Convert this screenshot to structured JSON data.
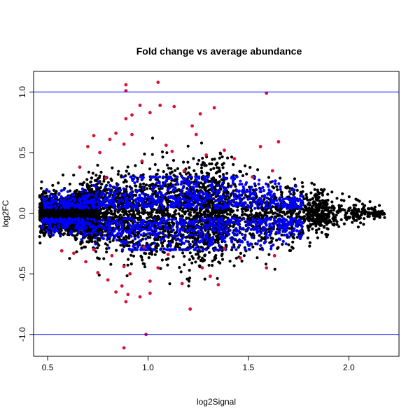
{
  "chart_data": {
    "type": "scatter",
    "title": "Fold change vs average abundance",
    "xlabel": "log2Signal",
    "ylabel": "log2FC",
    "xlim": [
      0.43,
      2.25
    ],
    "ylim": [
      -1.18,
      1.17
    ],
    "x_ticks": [
      0.5,
      1.0,
      1.5,
      2.0
    ],
    "x_tick_labels": [
      "0.5",
      "1.0",
      "1.5",
      "2.0"
    ],
    "y_ticks": [
      -1.0,
      -0.5,
      0.0,
      0.5,
      1.0
    ],
    "y_tick_labels": [
      "-1.0",
      "-0.5",
      "0.0",
      "0.5",
      "1.0"
    ],
    "hlines": [
      1.0,
      -1.0
    ],
    "grid": false,
    "colors": {
      "background_points": "#000000",
      "moderate_points": "#0000ff",
      "significant_points": "#dd1133",
      "hline": "#0000ff"
    },
    "series": [
      {
        "color": "#dd1133",
        "points": [
          [
            0.89,
            1.06
          ],
          [
            0.89,
            1.01
          ],
          [
            1.05,
            1.08
          ],
          [
            1.59,
            0.99
          ],
          [
            0.92,
            0.81
          ],
          [
            0.89,
            0.78
          ],
          [
            0.96,
            0.89
          ],
          [
            1.01,
            0.83
          ],
          [
            1.06,
            0.89
          ],
          [
            1.13,
            0.88
          ],
          [
            1.26,
            0.82
          ],
          [
            1.33,
            0.87
          ],
          [
            1.22,
            0.72
          ],
          [
            1.24,
            0.65
          ],
          [
            0.84,
            0.66
          ],
          [
            0.92,
            0.65
          ],
          [
            0.73,
            0.64
          ],
          [
            0.81,
            0.61
          ],
          [
            1.65,
            0.59
          ],
          [
            1.56,
            0.55
          ],
          [
            0.88,
            0.57
          ],
          [
            1.38,
            0.52
          ],
          [
            0.7,
            0.55
          ],
          [
            0.76,
            0.5
          ],
          [
            1.09,
            0.56
          ],
          [
            1.12,
            0.51
          ],
          [
            1.29,
            0.48
          ],
          [
            1.43,
            0.45
          ],
          [
            0.66,
            0.38
          ],
          [
            0.97,
            0.43
          ],
          [
            1.18,
            0.35
          ],
          [
            1.62,
            0.35
          ],
          [
            0.79,
            0.29
          ],
          [
            1.52,
            0.3
          ],
          [
            0.57,
            -0.31
          ],
          [
            0.63,
            -0.33
          ],
          [
            0.73,
            -0.3
          ],
          [
            0.82,
            -0.35
          ],
          [
            0.98,
            -0.28
          ],
          [
            1.1,
            -0.34
          ],
          [
            1.38,
            -0.29
          ],
          [
            1.63,
            -0.35
          ],
          [
            0.69,
            -0.4
          ],
          [
            0.88,
            -0.44
          ],
          [
            0.75,
            -0.49
          ],
          [
            0.91,
            -0.5
          ],
          [
            1.05,
            -0.45
          ],
          [
            1.27,
            -0.45
          ],
          [
            1.46,
            -0.37
          ],
          [
            1.59,
            -0.45
          ],
          [
            0.8,
            -0.55
          ],
          [
            0.87,
            -0.6
          ],
          [
            1.01,
            -0.56
          ],
          [
            1.35,
            -0.59
          ],
          [
            0.84,
            -0.65
          ],
          [
            0.9,
            -0.67
          ],
          [
            0.96,
            -0.69
          ],
          [
            0.89,
            -0.73
          ],
          [
            1.01,
            -0.66
          ],
          [
            1.21,
            -0.79
          ],
          [
            0.99,
            -1.0
          ],
          [
            0.88,
            -1.11
          ],
          [
            1.17,
            -0.58
          ],
          [
            1.31,
            -0.52
          ]
        ]
      }
    ]
  }
}
